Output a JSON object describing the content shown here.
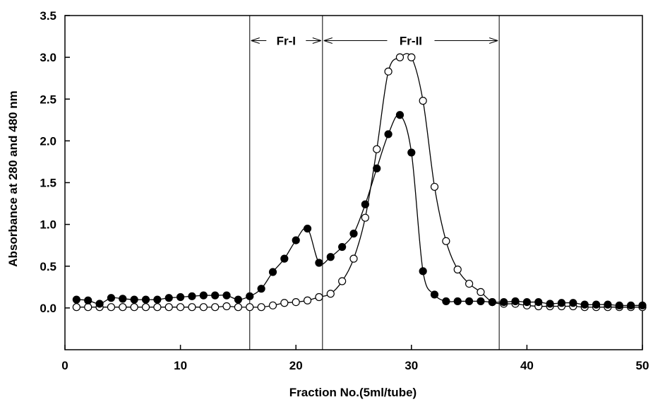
{
  "chart_data": {
    "type": "line",
    "xlabel": "Fraction No.(5ml/tube)",
    "ylabel": "Absorbance at 280 and 480 nm",
    "xlim": [
      0,
      50
    ],
    "ylim": [
      -0.5,
      3.5
    ],
    "xticks": [
      0,
      10,
      20,
      30,
      40,
      50
    ],
    "yticks": [
      0.0,
      0.5,
      1.0,
      1.5,
      2.0,
      2.5,
      3.0,
      3.5
    ],
    "xtick_labels": [
      "0",
      "10",
      "20",
      "30",
      "40",
      "50"
    ],
    "ytick_labels": [
      "0.0",
      "0.5",
      "1.0",
      "1.5",
      "2.0",
      "2.5",
      "3.0",
      "3.5"
    ],
    "grid": false,
    "series": [
      {
        "marker": "filled-circle",
        "x": [
          1,
          2,
          3,
          4,
          5,
          6,
          7,
          8,
          9,
          10,
          11,
          12,
          13,
          14,
          15,
          16,
          17,
          18,
          19,
          20,
          21,
          22,
          23,
          24,
          25,
          26,
          27,
          28,
          29,
          30,
          31,
          32,
          33,
          34,
          35,
          36,
          37,
          38,
          39,
          40,
          41,
          42,
          43,
          44,
          45,
          46,
          47,
          48,
          49,
          50
        ],
        "y": [
          0.1,
          0.09,
          0.05,
          0.12,
          0.11,
          0.1,
          0.1,
          0.1,
          0.12,
          0.13,
          0.14,
          0.15,
          0.15,
          0.15,
          0.1,
          0.14,
          0.23,
          0.43,
          0.59,
          0.81,
          0.95,
          0.54,
          0.61,
          0.73,
          0.89,
          1.24,
          1.67,
          2.08,
          2.31,
          1.86,
          0.44,
          0.16,
          0.08,
          0.08,
          0.08,
          0.08,
          0.07,
          0.07,
          0.08,
          0.07,
          0.07,
          0.05,
          0.06,
          0.06,
          0.04,
          0.04,
          0.04,
          0.03,
          0.03,
          0.03
        ]
      },
      {
        "marker": "open-circle",
        "x": [
          1,
          2,
          3,
          4,
          5,
          6,
          7,
          8,
          9,
          10,
          11,
          12,
          13,
          14,
          15,
          16,
          17,
          18,
          19,
          20,
          21,
          22,
          23,
          24,
          25,
          26,
          27,
          28,
          29,
          30,
          31,
          32,
          33,
          34,
          35,
          36,
          37,
          38,
          39,
          40,
          41,
          42,
          43,
          44,
          45,
          46,
          47,
          48,
          49,
          50
        ],
        "y": [
          0.01,
          0.01,
          0.01,
          0.01,
          0.01,
          0.01,
          0.01,
          0.01,
          0.01,
          0.01,
          0.01,
          0.01,
          0.01,
          0.02,
          0.01,
          0.01,
          0.01,
          0.03,
          0.06,
          0.07,
          0.09,
          0.13,
          0.17,
          0.32,
          0.59,
          1.08,
          1.9,
          2.83,
          3.0,
          3.0,
          2.48,
          1.45,
          0.8,
          0.46,
          0.29,
          0.19,
          0.07,
          0.05,
          0.05,
          0.03,
          0.02,
          0.02,
          0.02,
          0.02,
          0.01,
          0.01,
          0.01,
          0.01,
          0.01,
          0.01
        ]
      }
    ],
    "vertical_lines": [
      16.0,
      22.3,
      37.6
    ],
    "fraction_ranges": [
      {
        "label": "Fr-I",
        "from": 16.0,
        "to": 22.3
      },
      {
        "label": "Fr-II",
        "from": 22.3,
        "to": 37.6
      }
    ]
  }
}
